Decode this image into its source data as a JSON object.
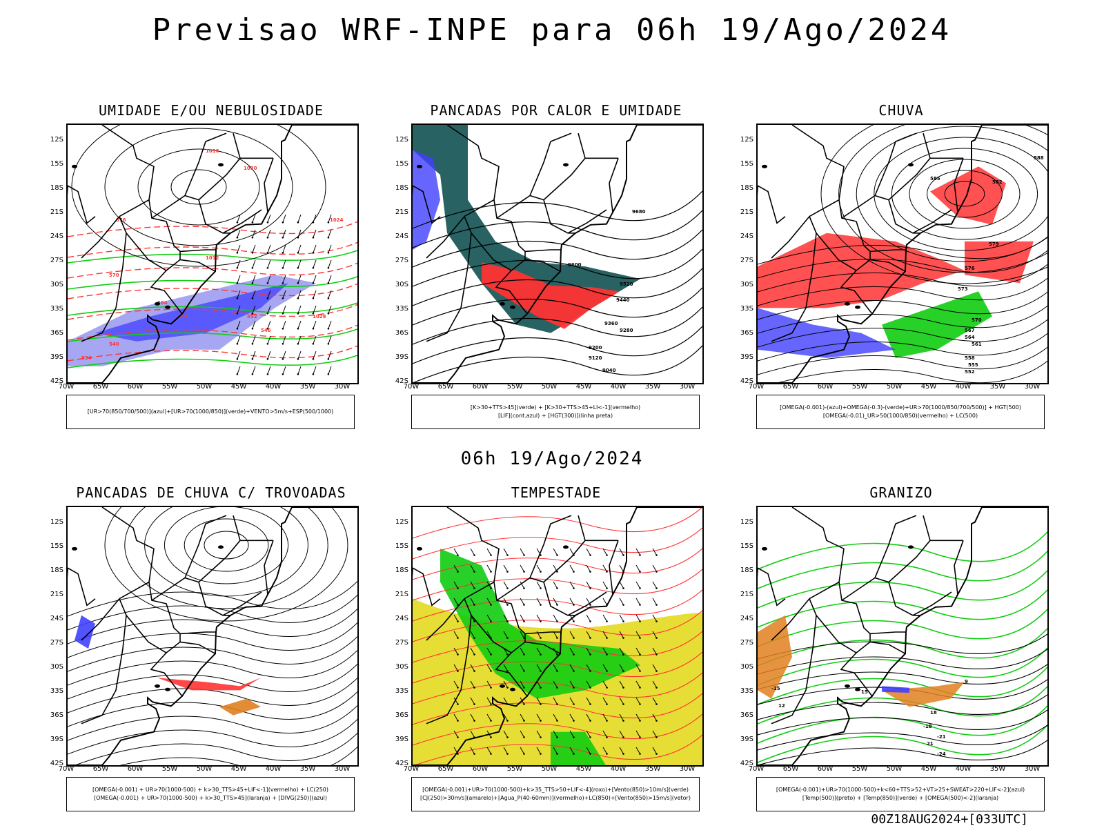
{
  "header": {
    "main_title": "Previsao WRF-INPE  para 06h 19/Ago/2024",
    "mid_title": "06h 19/Ago/2024",
    "footer": "00Z18AUG2024+[033UTC]"
  },
  "axes": {
    "lat_labels": [
      "12S",
      "15S",
      "18S",
      "21S",
      "24S",
      "27S",
      "30S",
      "33S",
      "36S",
      "39S",
      "42S"
    ],
    "lon_labels": [
      "70W",
      "65W",
      "60W",
      "55W",
      "50W",
      "45W",
      "40W",
      "35W",
      "30W"
    ]
  },
  "colors": {
    "blue": "#4040ff",
    "lightblue": "#9090f0",
    "green": "#11cc11",
    "red": "#ff3333",
    "darkteal": "#1e5a5a",
    "yellow": "#e6dc2a",
    "orange": "#e08020"
  },
  "panels": [
    {
      "title": "UMIDADE E/OU NEBULOSIDADE",
      "legend": [
        "[UR>70(850/700/500)](azul)+[UR>70(1000/850)](verde)+VENTO>5m/s+ESP(500/1000)"
      ],
      "contour_labels": [
        "1016",
        "1020",
        "1024",
        "1028",
        "1012",
        "576",
        "570",
        "564",
        "558",
        "552",
        "546",
        "540",
        "534"
      ]
    },
    {
      "title": "PANCADAS POR CALOR E UMIDADE",
      "legend": [
        "[K>30+TTS>45](verde) + [K>30+TTS>45+LI<-1](vermelho)",
        "[LIF](cont.azul) + [HGT(300)](linha preta)"
      ],
      "contour_labels": [
        "9680",
        "9600",
        "9520",
        "9440",
        "9360",
        "9280",
        "9200",
        "9120",
        "9040"
      ]
    },
    {
      "title": "CHUVA",
      "legend": [
        "[OMEGA(-0.001)-(azul)+OMEGA(-0.3)-(verde)+UR>70(1000/850/700/500)] + HGT(500)",
        "[OMEGA(-0.01)_UR>50(1000/850)(vermelho) + LC(500)"
      ],
      "contour_labels": [
        "588",
        "585",
        "582",
        "579",
        "576",
        "573",
        "570",
        "567",
        "564",
        "561",
        "558",
        "555",
        "552"
      ]
    },
    {
      "title": "PANCADAS DE CHUVA C/ TROVOADAS",
      "legend": [
        "[OMEGA(-0.001) + UR>70(1000-500) + k>30_TTS>45+LIF<-1](vermelho) + LC(250)",
        "[OMEGA(-0.001) + UR>70(1000-500) + k>30_TTS>45](laranja) + [DIVG(250)](azul)"
      ],
      "contour_labels": []
    },
    {
      "title": "TEMPESTADE",
      "legend": [
        "[OMEGA(-0.001)+UR>70(1000-500)+k>35_TTS>50+LIF<-4](roxo)+[Vento(850)>10m/s](verde)",
        "[CJ(250)>30m/s](amarelo)+[Agua_P(40-60mm)](vermelho)+LC(850)+[Vento(850)>15m/s](vetor)"
      ],
      "contour_labels": []
    },
    {
      "title": "GRANIZO",
      "legend": [
        "[OMEGA(-0.001)+UR>70(1000-500)+k<60+TTS>52+VT>25+SWEAT>220+LIF<-2](azul)",
        "[Temp(500)](preto) + [Temp(850)](verde) + [OMEGA(500)<-2](laranja)"
      ],
      "contour_labels": [
        "-15",
        "-18",
        "-21",
        "-24",
        "9",
        "12",
        "15",
        "18",
        "21"
      ]
    }
  ]
}
